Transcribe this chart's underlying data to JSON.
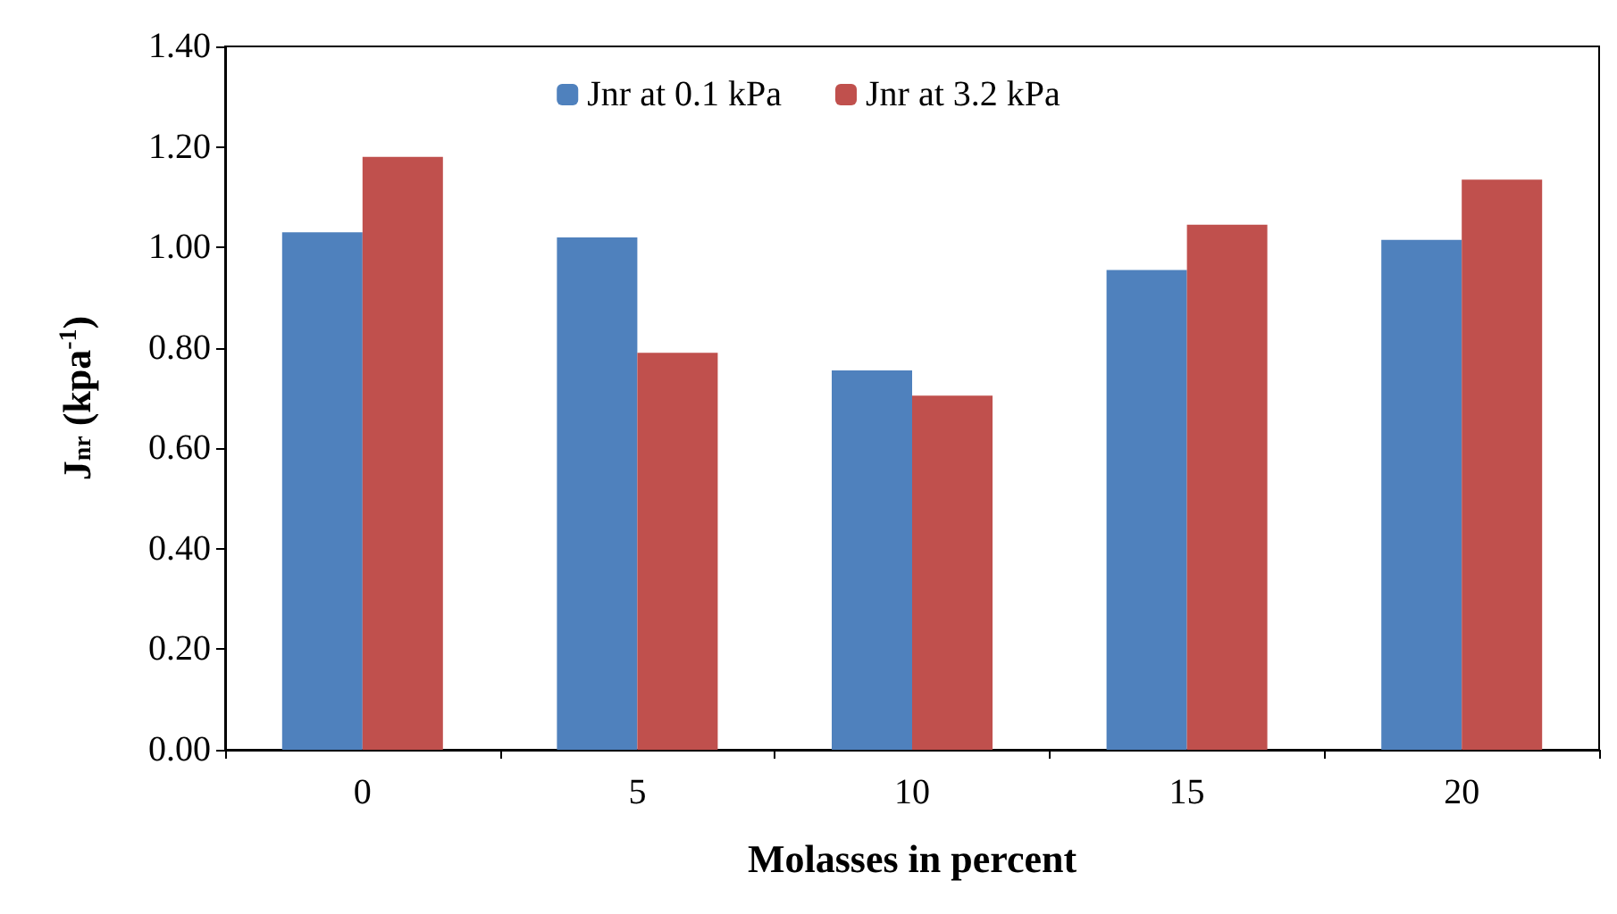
{
  "chart_data": {
    "type": "bar",
    "xlabel": "Molasses in percent",
    "ylabel": "J$_{nr}$ (kpa$^{-1}$)",
    "categories": [
      "0",
      "5",
      "10",
      "15",
      "20"
    ],
    "series": [
      {
        "name": "Jnr at 0.1 kPa",
        "color": "#4f81bd",
        "values": [
          1.03,
          1.02,
          0.755,
          0.955,
          1.015
        ]
      },
      {
        "name": "Jnr at 3.2 kPa",
        "color": "#c0504d",
        "values": [
          1.18,
          0.79,
          0.705,
          1.045,
          1.135
        ]
      }
    ],
    "ylim": [
      0,
      1.4
    ],
    "yticks": [
      {
        "value": 0,
        "label": "0.00"
      },
      {
        "value": 0.2,
        "label": "0.20"
      },
      {
        "value": 0.4,
        "label": "0.40"
      },
      {
        "value": 0.6,
        "label": "0.60"
      },
      {
        "value": 0.8,
        "label": "0.80"
      },
      {
        "value": 1.0,
        "label": "1.00"
      },
      {
        "value": 1.2,
        "label": "1.20"
      },
      {
        "value": 1.4,
        "label": "1.40"
      }
    ],
    "grid": false,
    "legend": "top"
  }
}
